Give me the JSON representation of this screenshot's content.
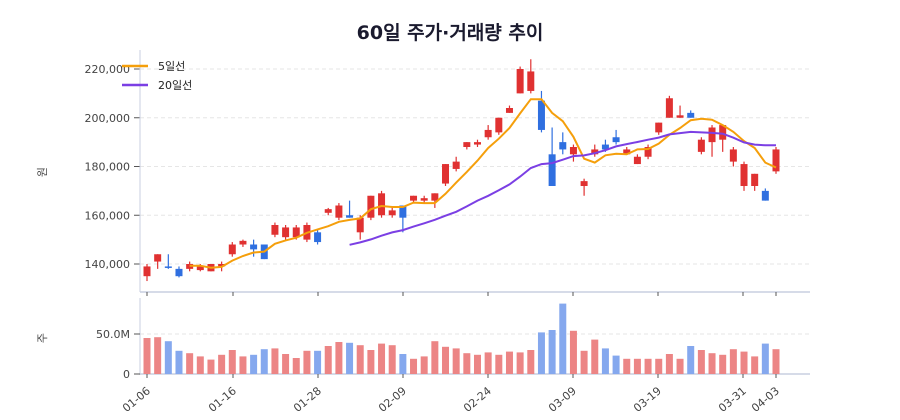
{
  "title": "60일 주가·거래량 추이",
  "colors": {
    "up": "#e03131",
    "down": "#2f6fe0",
    "up_vol": "#ec8585",
    "down_vol": "#85a8ee",
    "ma5": "#f59f0b",
    "ma20": "#7b3fe4",
    "grid": "#e6e6e6",
    "axis": "#c9cfe0"
  },
  "legend": [
    {
      "label": "5일선",
      "color": "#f59f0b"
    },
    {
      "label": "20일선",
      "color": "#7b3fe4"
    }
  ],
  "chart_data": [
    {
      "type": "candlestick",
      "title": "60일 주가·거래량 추이",
      "ylabel": "원",
      "ylim": [
        130000,
        227000
      ],
      "yticks": [
        "140,000",
        "160,000",
        "180,000",
        "200,000",
        "220,000"
      ],
      "xticks": [
        "01-06",
        "01-16",
        "01-28",
        "02-09",
        "02-24",
        "03-09",
        "03-19",
        "03-31",
        "04-03"
      ],
      "series": [
        {
          "name": "5일선"
        },
        {
          "name": "20일선"
        }
      ],
      "grid": true,
      "legend_position": "upper-left"
    },
    {
      "type": "bar",
      "ylabel": "주",
      "yticks": [
        "0",
        "50.0M"
      ],
      "ylim": [
        0,
        95
      ],
      "unit": "M"
    }
  ],
  "axes": {
    "price_ylabel": "원",
    "volume_ylabel": "주",
    "price_ticks": [
      "140,000",
      "160,000",
      "180,000",
      "200,000",
      "220,000"
    ],
    "volume_ticks": [
      "0",
      "50.0M"
    ],
    "x_ticks": [
      "01-06",
      "01-16",
      "01-28",
      "02-09",
      "02-24",
      "03-09",
      "03-19",
      "03-31",
      "04-03"
    ]
  }
}
